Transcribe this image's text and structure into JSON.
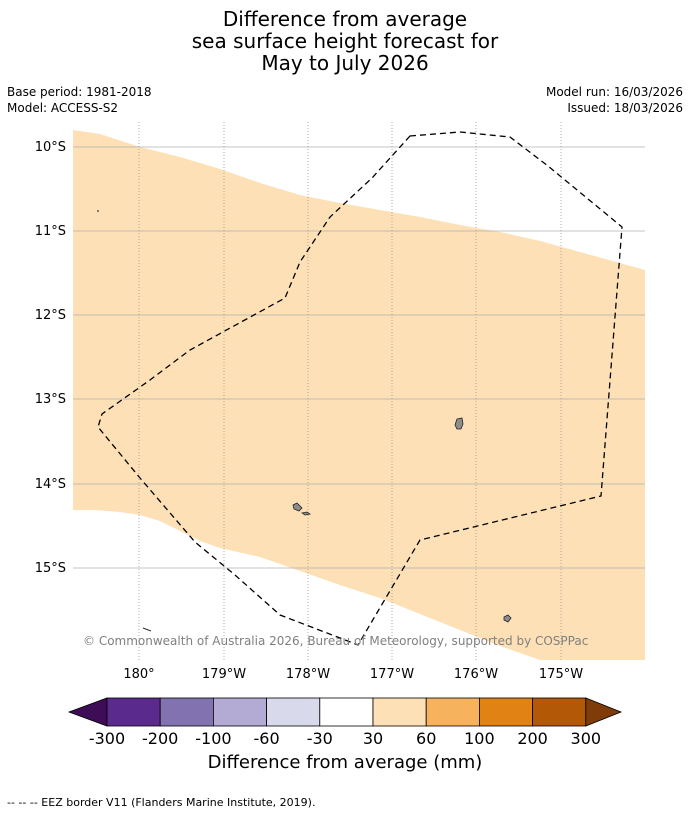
{
  "title": {
    "line1": "Difference from average",
    "line2": "sea surface height forecast for",
    "line3": "May to July 2026"
  },
  "meta": {
    "base_period": "Base period: 1981-2018",
    "model": "Model: ACCESS-S2",
    "model_run": "Model run: 16/03/2026",
    "issued": "Issued: 18/03/2026"
  },
  "map": {
    "lat_labels": [
      "10°S",
      "11°S",
      "12°S",
      "13°S",
      "14°S",
      "15°S"
    ],
    "lon_labels": [
      "180°",
      "179°W",
      "178°W",
      "177°W",
      "176°W",
      "175°W"
    ],
    "copyright": "© Commonwealth of Australia 2026, Bureau of Meteorology, supported by COSPPac",
    "colors": {
      "band_30_60": "#fde0b6",
      "land": "#8c8c8c",
      "grid": "#b0b0b0"
    }
  },
  "colorbar": {
    "tick_labels": [
      "-300",
      "-200",
      "-100",
      "-60",
      "-30",
      "30",
      "60",
      "100",
      "200",
      "300"
    ],
    "colors": [
      "#3f0d57",
      "#5a2b8c",
      "#8272b0",
      "#b3abd4",
      "#d9d9ec",
      "#ffffff",
      "#fde0b6",
      "#f7b25e",
      "#e08214",
      "#b35806",
      "#7f3b08"
    ],
    "label": "Difference from average (mm)"
  },
  "footnote": "--  --  -- EEZ border V11 (Flanders Marine Institute, 2019)."
}
